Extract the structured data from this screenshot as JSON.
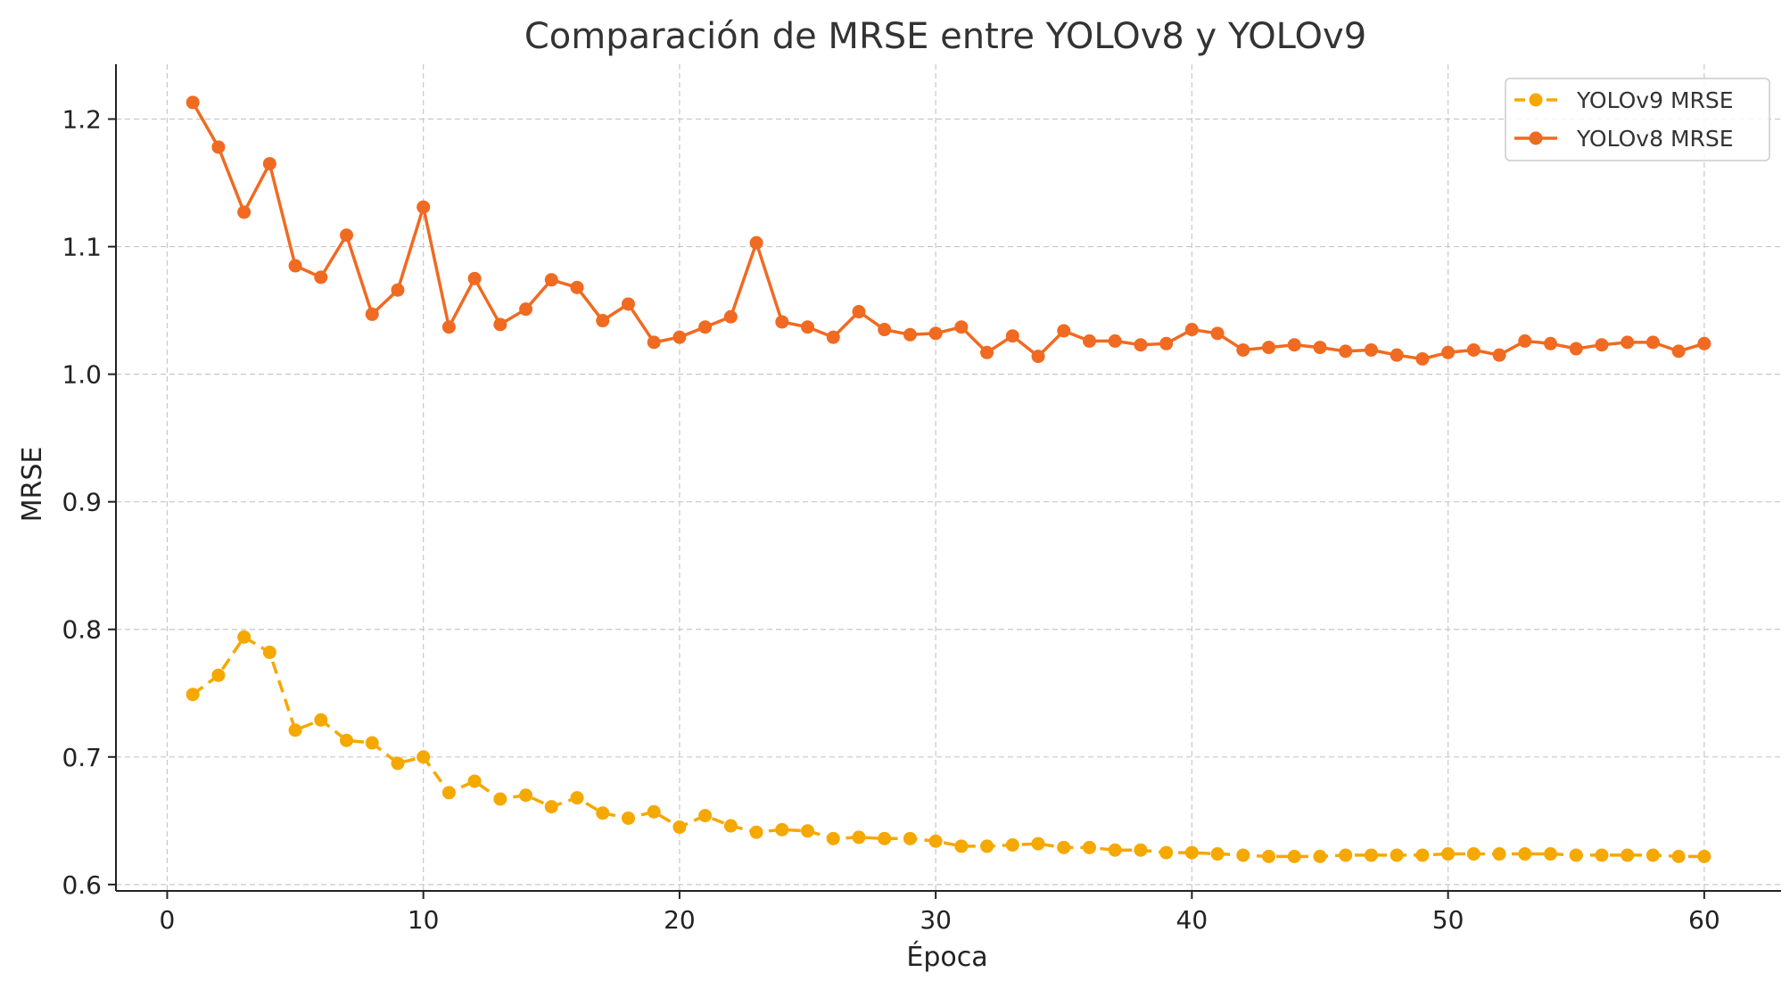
{
  "chart_data": {
    "type": "line",
    "title": "Comparación de MRSE entre YOLOv8 y YOLOv9",
    "xlabel": "Época",
    "ylabel": "MRSE",
    "xlim": [
      -2,
      63
    ],
    "ylim": [
      0.595,
      1.243
    ],
    "xticks": [
      0,
      10,
      20,
      30,
      40,
      50,
      60
    ],
    "yticks": [
      0.6,
      0.7,
      0.8,
      0.9,
      1.0,
      1.1,
      1.2
    ],
    "ytick_labels": [
      "0.6",
      "0.7",
      "0.8",
      "0.9",
      "1.0",
      "1.1",
      "1.2"
    ],
    "grid": true,
    "legend_position": "top-right",
    "x": [
      1,
      2,
      3,
      4,
      5,
      6,
      7,
      8,
      9,
      10,
      11,
      12,
      13,
      14,
      15,
      16,
      17,
      18,
      19,
      20,
      21,
      22,
      23,
      24,
      25,
      26,
      27,
      28,
      29,
      30,
      31,
      32,
      33,
      34,
      35,
      36,
      37,
      38,
      39,
      40,
      41,
      42,
      43,
      44,
      45,
      46,
      47,
      48,
      49,
      50,
      51,
      52,
      53,
      54,
      55,
      56,
      57,
      58,
      59,
      60
    ],
    "series": [
      {
        "name": "YOLOv9 MRSE",
        "color": "#f5a800",
        "style": "dashed",
        "values": [
          0.749,
          0.764,
          0.794,
          0.782,
          0.721,
          0.729,
          0.713,
          0.711,
          0.695,
          0.7,
          0.672,
          0.681,
          0.667,
          0.67,
          0.661,
          0.668,
          0.656,
          0.652,
          0.657,
          0.645,
          0.654,
          0.646,
          0.641,
          0.643,
          0.642,
          0.636,
          0.637,
          0.636,
          0.636,
          0.634,
          0.63,
          0.63,
          0.631,
          0.632,
          0.629,
          0.629,
          0.627,
          0.627,
          0.625,
          0.625,
          0.624,
          0.623,
          0.622,
          0.622,
          0.622,
          0.623,
          0.623,
          0.623,
          0.623,
          0.624,
          0.624,
          0.624,
          0.624,
          0.624,
          0.623,
          0.623,
          0.623,
          0.623,
          0.622,
          0.622
        ]
      },
      {
        "name": "YOLOv8 MRSE",
        "color": "#f06a21",
        "style": "solid",
        "values": [
          1.213,
          1.178,
          1.127,
          1.165,
          1.085,
          1.076,
          1.109,
          1.047,
          1.066,
          1.131,
          1.037,
          1.075,
          1.039,
          1.051,
          1.074,
          1.068,
          1.042,
          1.055,
          1.025,
          1.029,
          1.037,
          1.045,
          1.103,
          1.041,
          1.037,
          1.029,
          1.049,
          1.035,
          1.031,
          1.032,
          1.037,
          1.017,
          1.03,
          1.014,
          1.034,
          1.026,
          1.026,
          1.023,
          1.024,
          1.035,
          1.032,
          1.019,
          1.021,
          1.023,
          1.021,
          1.018,
          1.019,
          1.015,
          1.012,
          1.017,
          1.019,
          1.015,
          1.026,
          1.024,
          1.02,
          1.023,
          1.025,
          1.025,
          1.018,
          1.024
        ]
      }
    ]
  }
}
